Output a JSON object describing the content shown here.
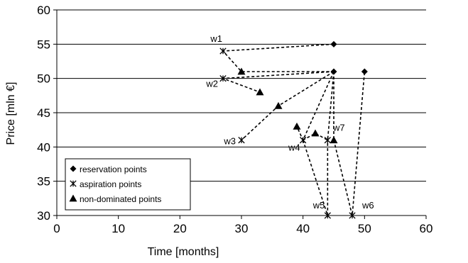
{
  "chart_data": {
    "type": "scatter",
    "title": "",
    "xlabel": "Time [months]",
    "ylabel": "Price [mln €]",
    "xlim": [
      0,
      60
    ],
    "ylim": [
      30,
      60
    ],
    "xticks": [
      0,
      10,
      20,
      30,
      40,
      50,
      60
    ],
    "yticks": [
      30,
      35,
      40,
      45,
      50,
      55,
      60
    ],
    "grid": "horizontal",
    "legend_position": "bottom-left",
    "series": [
      {
        "name": "reservation points",
        "marker": "diamond",
        "points": [
          [
            45,
            55
          ],
          [
            45,
            51
          ],
          [
            50,
            51
          ]
        ]
      },
      {
        "name": "aspiration points",
        "marker": "asterisk",
        "points": [
          [
            27,
            54
          ],
          [
            27,
            50
          ],
          [
            30,
            41
          ],
          [
            40,
            41
          ],
          [
            44,
            41
          ],
          [
            44,
            30
          ],
          [
            48,
            30
          ]
        ]
      },
      {
        "name": "non-dominated points",
        "marker": "triangle",
        "points": [
          [
            30,
            51
          ],
          [
            33,
            48
          ],
          [
            36,
            46
          ],
          [
            39,
            43
          ],
          [
            42,
            42
          ],
          [
            45,
            41
          ]
        ]
      }
    ],
    "annotations": [
      {
        "text": "w1",
        "x": 27,
        "y": 54
      },
      {
        "text": "w2",
        "x": 27,
        "y": 50
      },
      {
        "text": "w3",
        "x": 30,
        "y": 41
      },
      {
        "text": "w4",
        "x": 40,
        "y": 41
      },
      {
        "text": "w5",
        "x": 44,
        "y": 30
      },
      {
        "text": "w6",
        "x": 48,
        "y": 30
      },
      {
        "text": "w7",
        "x": 45,
        "y": 41
      }
    ],
    "dashed_paths": [
      [
        [
          45,
          55
        ],
        [
          27,
          54
        ],
        [
          30,
          51
        ],
        [
          45,
          51
        ]
      ],
      [
        [
          45,
          51
        ],
        [
          27,
          50
        ],
        [
          33,
          48
        ]
      ],
      [
        [
          45,
          51
        ],
        [
          36,
          46
        ],
        [
          30,
          41
        ]
      ],
      [
        [
          45,
          51
        ],
        [
          40,
          41
        ],
        [
          39,
          43
        ]
      ],
      [
        [
          45,
          51
        ],
        [
          44,
          41
        ],
        [
          42,
          42
        ],
        [
          40,
          41
        ]
      ],
      [
        [
          45,
          51
        ],
        [
          45,
          41
        ]
      ],
      [
        [
          40,
          41
        ],
        [
          44,
          30
        ],
        [
          44,
          41
        ]
      ],
      [
        [
          45,
          41
        ],
        [
          48,
          30
        ],
        [
          50,
          51
        ]
      ]
    ],
    "colors": {
      "marker": "#000000",
      "grid": "#000000",
      "line": "#000000"
    }
  }
}
